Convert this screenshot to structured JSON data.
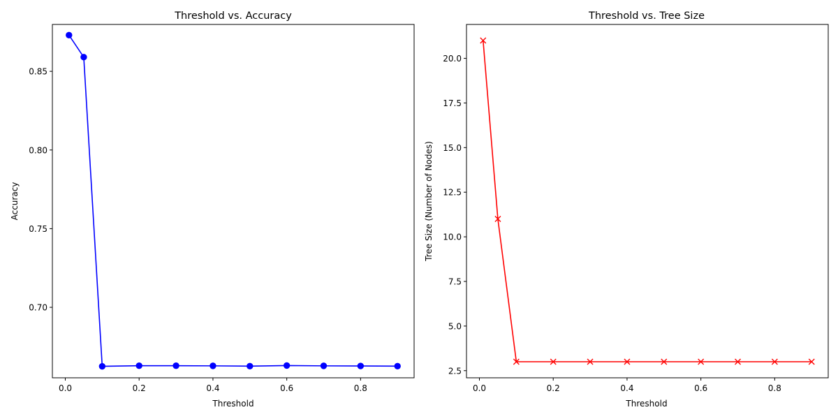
{
  "chart_data": [
    {
      "type": "line",
      "title": "Threshold vs. Accuracy",
      "xlabel": "Threshold",
      "ylabel": "Accuracy",
      "xlim": [
        -0.035,
        0.945
      ],
      "ylim": [
        0.6552,
        0.8798
      ],
      "xticks": [
        0.0,
        0.2,
        0.4,
        0.6,
        0.8
      ],
      "xtick_labels": [
        "0.0",
        "0.2",
        "0.4",
        "0.6",
        "0.8"
      ],
      "yticks": [
        0.7,
        0.75,
        0.8,
        0.85
      ],
      "ytick_labels": [
        "0.70",
        "0.75",
        "0.80",
        "0.85"
      ],
      "grid": false,
      "series": [
        {
          "color": "#0000ff",
          "marker": "circle",
          "x": [
            0.01,
            0.05,
            0.1,
            0.2,
            0.3,
            0.4,
            0.5,
            0.6,
            0.7,
            0.8,
            0.9
          ],
          "y": [
            0.873,
            0.859,
            0.6625,
            0.6629,
            0.6629,
            0.6628,
            0.6626,
            0.663,
            0.6628,
            0.6627,
            0.6626
          ]
        }
      ]
    },
    {
      "type": "line",
      "title": "Threshold vs. Tree Size",
      "xlabel": "Threshold",
      "ylabel": "Tree Size (Number of Nodes)",
      "xlim": [
        -0.035,
        0.945
      ],
      "ylim": [
        2.1,
        21.9
      ],
      "xticks": [
        0.0,
        0.2,
        0.4,
        0.6,
        0.8
      ],
      "xtick_labels": [
        "0.0",
        "0.2",
        "0.4",
        "0.6",
        "0.8"
      ],
      "yticks": [
        2.5,
        5.0,
        7.5,
        10.0,
        12.5,
        15.0,
        17.5,
        20.0
      ],
      "ytick_labels": [
        "2.5",
        "5.0",
        "7.5",
        "10.0",
        "12.5",
        "15.0",
        "17.5",
        "20.0"
      ],
      "grid": false,
      "series": [
        {
          "color": "#ff0000",
          "marker": "x",
          "x": [
            0.01,
            0.05,
            0.1,
            0.2,
            0.3,
            0.4,
            0.5,
            0.6,
            0.7,
            0.8,
            0.9
          ],
          "y": [
            21,
            11,
            3,
            3,
            3,
            3,
            3,
            3,
            3,
            3,
            3
          ]
        }
      ]
    }
  ]
}
